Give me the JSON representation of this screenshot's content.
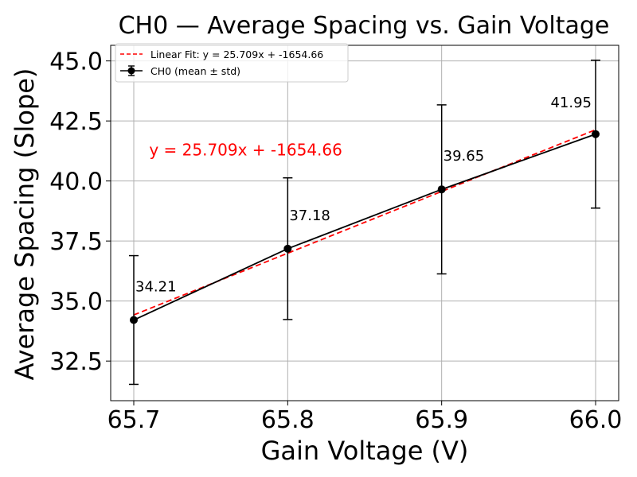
{
  "chart_data": {
    "type": "line",
    "title": "CH0 — Average Spacing vs. Gain Voltage",
    "xlabel": "Gain Voltage (V)",
    "ylabel": "Average Spacing (Slope)",
    "xlim": [
      65.685,
      66.015
    ],
    "ylim": [
      30.85,
      45.65
    ],
    "xticks": [
      65.7,
      65.8,
      65.9,
      66.0
    ],
    "xtick_labels": [
      "65.7",
      "65.8",
      "65.9",
      "66.0"
    ],
    "yticks": [
      32.5,
      35.0,
      37.5,
      40.0,
      42.5,
      45.0
    ],
    "ytick_labels": [
      "32.5",
      "35.0",
      "37.5",
      "40.0",
      "42.5",
      "45.0"
    ],
    "grid": true,
    "legend_position": "top-left",
    "series": [
      {
        "name": "CH0 (mean ± std)",
        "color": "#000000",
        "marker": "circle",
        "x": [
          65.7,
          65.8,
          65.9,
          66.0
        ],
        "y": [
          34.21,
          37.18,
          39.65,
          41.95
        ],
        "err": [
          2.68,
          2.95,
          3.52,
          3.08
        ],
        "point_labels": [
          "34.21",
          "37.18",
          "39.65",
          "41.95"
        ]
      },
      {
        "name": "Linear Fit: y = 25.709x + -1654.66",
        "color": "#ff0000",
        "style": "dashed",
        "slope": 25.709,
        "intercept": -1654.66,
        "x": [
          65.7,
          66.0
        ]
      }
    ],
    "annotation": {
      "text": "y = 25.709x + -1654.66",
      "color": "#ff0000",
      "x": 65.71,
      "y": 41.3
    }
  }
}
